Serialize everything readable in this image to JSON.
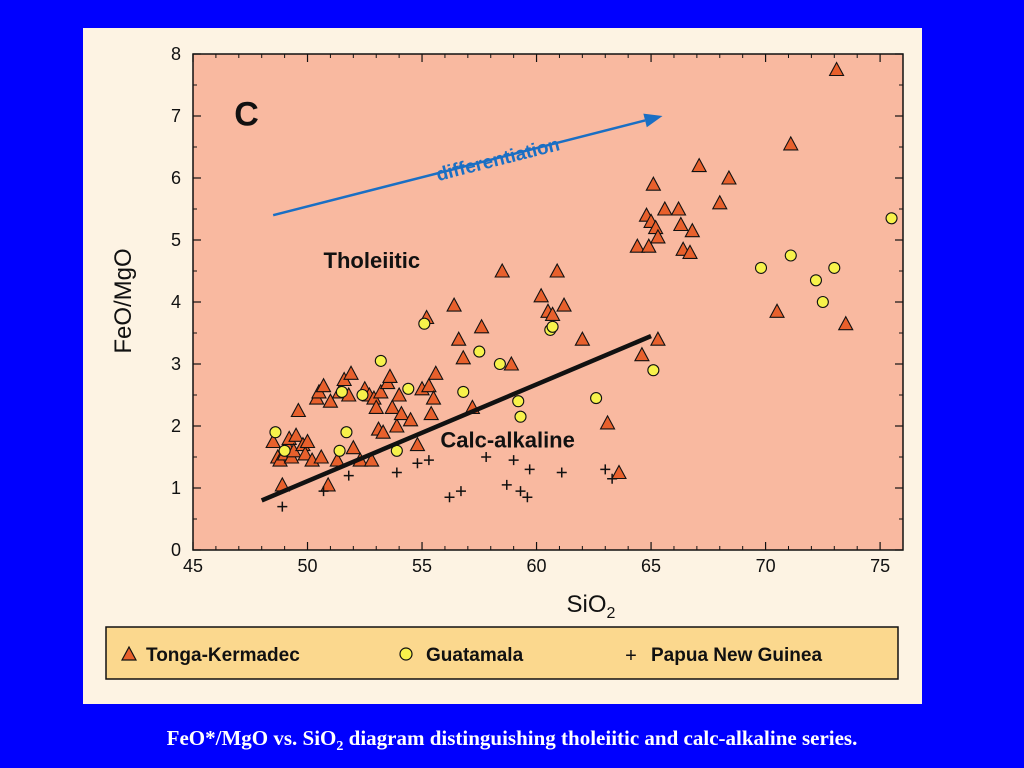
{
  "caption": {
    "part1": "FeO*/MgO vs. SiO",
    "sub": "2",
    "part2": " diagram distinguishing tholeiitic and calc-alkaline series."
  },
  "chart_data": {
    "type": "scatter",
    "panel_label": "C",
    "xlabel": "SiO",
    "xlabel_sub": "2",
    "ylabel": "FeO/MgO",
    "xlim": [
      45,
      76
    ],
    "ylim": [
      0,
      8
    ],
    "xticks": [
      45,
      50,
      55,
      60,
      65,
      70,
      75
    ],
    "yticks": [
      0,
      1,
      2,
      3,
      4,
      5,
      6,
      7,
      8
    ],
    "grid": false,
    "background_color": "#f9b9a0",
    "legend_placement": "bottom",
    "annotations": {
      "differentiation": {
        "text": "differentiation",
        "color": "#1a6fc4"
      },
      "tholeiitic": {
        "text": "Tholeiitic"
      },
      "calc_alkaline": {
        "text": "Calc-alkaline"
      }
    },
    "arrow": {
      "from": [
        48.5,
        5.4
      ],
      "to": [
        65.5,
        7.0
      ]
    },
    "divider_line": {
      "from": [
        48,
        0.8
      ],
      "to": [
        65,
        3.45
      ]
    },
    "series": [
      {
        "name": "Tonga-Kermadec",
        "marker": "triangle",
        "color": "#e8602c",
        "points": [
          [
            48.5,
            1.75
          ],
          [
            48.7,
            1.5
          ],
          [
            48.8,
            1.45
          ],
          [
            48.9,
            1.05
          ],
          [
            49.0,
            1.55
          ],
          [
            49.1,
            1.7
          ],
          [
            49.2,
            1.8
          ],
          [
            49.3,
            1.5
          ],
          [
            49.4,
            1.6
          ],
          [
            49.5,
            1.85
          ],
          [
            49.6,
            2.25
          ],
          [
            49.8,
            1.7
          ],
          [
            49.9,
            1.55
          ],
          [
            50.0,
            1.75
          ],
          [
            50.2,
            1.45
          ],
          [
            50.4,
            2.45
          ],
          [
            50.5,
            2.55
          ],
          [
            50.6,
            1.5
          ],
          [
            50.7,
            2.65
          ],
          [
            50.9,
            1.05
          ],
          [
            51.0,
            2.4
          ],
          [
            51.3,
            1.45
          ],
          [
            51.4,
            2.55
          ],
          [
            51.6,
            2.75
          ],
          [
            51.8,
            2.5
          ],
          [
            51.9,
            2.85
          ],
          [
            52.0,
            1.65
          ],
          [
            52.3,
            1.45
          ],
          [
            52.5,
            2.6
          ],
          [
            52.7,
            2.5
          ],
          [
            52.8,
            1.45
          ],
          [
            52.9,
            2.45
          ],
          [
            53.0,
            2.3
          ],
          [
            53.1,
            1.95
          ],
          [
            53.2,
            2.55
          ],
          [
            53.3,
            1.9
          ],
          [
            53.5,
            2.7
          ],
          [
            53.6,
            2.8
          ],
          [
            53.7,
            2.3
          ],
          [
            53.9,
            2.0
          ],
          [
            54.0,
            2.5
          ],
          [
            54.1,
            2.2
          ],
          [
            54.5,
            2.1
          ],
          [
            54.8,
            1.7
          ],
          [
            55.0,
            2.6
          ],
          [
            55.2,
            3.75
          ],
          [
            55.3,
            2.65
          ],
          [
            55.4,
            2.2
          ],
          [
            55.5,
            2.45
          ],
          [
            55.6,
            2.85
          ],
          [
            56.4,
            3.95
          ],
          [
            56.6,
            3.4
          ],
          [
            56.8,
            3.1
          ],
          [
            57.2,
            2.3
          ],
          [
            57.6,
            3.6
          ],
          [
            58.5,
            4.5
          ],
          [
            58.9,
            3.0
          ],
          [
            60.2,
            4.1
          ],
          [
            60.5,
            3.85
          ],
          [
            60.7,
            3.8
          ],
          [
            60.9,
            4.5
          ],
          [
            61.2,
            3.95
          ],
          [
            62.0,
            3.4
          ],
          [
            63.1,
            2.05
          ],
          [
            63.6,
            1.25
          ],
          [
            64.4,
            4.9
          ],
          [
            64.6,
            3.15
          ],
          [
            64.8,
            5.4
          ],
          [
            64.9,
            4.9
          ],
          [
            65.0,
            5.3
          ],
          [
            65.1,
            5.9
          ],
          [
            65.2,
            5.2
          ],
          [
            65.3,
            5.05
          ],
          [
            65.3,
            3.4
          ],
          [
            65.6,
            5.5
          ],
          [
            66.2,
            5.5
          ],
          [
            66.3,
            5.25
          ],
          [
            66.4,
            4.85
          ],
          [
            66.7,
            4.8
          ],
          [
            66.8,
            5.15
          ],
          [
            67.1,
            6.2
          ],
          [
            68.0,
            5.6
          ],
          [
            68.4,
            6.0
          ],
          [
            70.5,
            3.85
          ],
          [
            71.1,
            6.55
          ],
          [
            73.1,
            7.75
          ],
          [
            73.5,
            3.65
          ]
        ]
      },
      {
        "name": "Guatamala",
        "marker": "circle",
        "color": "#f7f24b",
        "points": [
          [
            48.6,
            1.9
          ],
          [
            49.0,
            1.6
          ],
          [
            51.4,
            1.6
          ],
          [
            51.5,
            2.55
          ],
          [
            51.7,
            1.9
          ],
          [
            52.4,
            2.5
          ],
          [
            53.2,
            3.05
          ],
          [
            53.9,
            1.6
          ],
          [
            54.4,
            2.6
          ],
          [
            55.1,
            3.65
          ],
          [
            56.8,
            2.55
          ],
          [
            57.5,
            3.2
          ],
          [
            58.4,
            3.0
          ],
          [
            59.2,
            2.4
          ],
          [
            59.3,
            2.15
          ],
          [
            60.6,
            3.55
          ],
          [
            60.7,
            3.6
          ],
          [
            62.6,
            2.45
          ],
          [
            65.1,
            2.9
          ],
          [
            69.8,
            4.55
          ],
          [
            71.1,
            4.75
          ],
          [
            72.2,
            4.35
          ],
          [
            72.5,
            4.0
          ],
          [
            73.0,
            4.55
          ],
          [
            75.5,
            5.35
          ]
        ]
      },
      {
        "name": "Papua New Guinea",
        "marker": "plus",
        "color": "#111111",
        "points": [
          [
            48.9,
            0.7
          ],
          [
            50.7,
            0.95
          ],
          [
            51.8,
            1.2
          ],
          [
            53.9,
            1.25
          ],
          [
            54.8,
            1.4
          ],
          [
            55.3,
            1.45
          ],
          [
            56.2,
            0.85
          ],
          [
            56.7,
            0.95
          ],
          [
            57.8,
            1.5
          ],
          [
            58.7,
            1.05
          ],
          [
            59.0,
            1.45
          ],
          [
            59.3,
            0.95
          ],
          [
            59.6,
            0.85
          ],
          [
            59.7,
            1.3
          ],
          [
            61.1,
            1.25
          ],
          [
            63.0,
            1.3
          ],
          [
            63.3,
            1.15
          ]
        ]
      }
    ]
  }
}
